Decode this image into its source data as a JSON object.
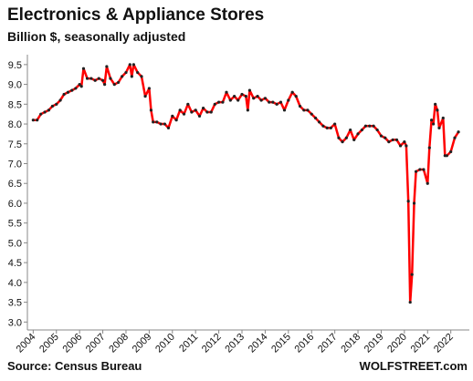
{
  "chart_data": {
    "type": "line",
    "title": "Electronics & Appliance Stores",
    "subtitle": "Billion $, seasonally adjusted",
    "source": "Source: Census Bureau",
    "credit": "WOLFSTREET.com",
    "xlim": [
      2003.75,
      2022.8
    ],
    "xticks": [
      2004,
      2005,
      2006,
      2007,
      2008,
      2009,
      2010,
      2011,
      2012,
      2013,
      2014,
      2015,
      2016,
      2017,
      2018,
      2019,
      2020,
      2021,
      2022
    ],
    "ylim": [
      2.8,
      9.75
    ],
    "yticks": [
      {
        "value": 3,
        "label": "3.0"
      },
      3.5,
      {
        "value": 4,
        "label": "4.0"
      },
      4.5,
      {
        "value": 5,
        "label": "5.0"
      },
      5.5,
      {
        "value": 6,
        "label": "6.0"
      },
      6.5,
      {
        "value": 7,
        "label": "7.0"
      },
      7.5,
      {
        "value": 8,
        "label": "8.0"
      },
      8.5,
      {
        "value": 9,
        "label": "9.0"
      },
      9.5
    ],
    "grid": false,
    "series": [
      {
        "color": "#ff0000",
        "marker_color": "#222222",
        "x": [
          2004.0,
          2004.17,
          2004.33,
          2004.5,
          2004.67,
          2004.83,
          2005.0,
          2005.17,
          2005.33,
          2005.5,
          2005.67,
          2005.83,
          2006.0,
          2006.08,
          2006.17,
          2006.33,
          2006.5,
          2006.67,
          2006.83,
          2007.0,
          2007.08,
          2007.17,
          2007.33,
          2007.5,
          2007.67,
          2007.83,
          2008.0,
          2008.17,
          2008.25,
          2008.33,
          2008.5,
          2008.67,
          2008.83,
          2009.0,
          2009.08,
          2009.17,
          2009.33,
          2009.5,
          2009.67,
          2009.83,
          2010.0,
          2010.17,
          2010.33,
          2010.5,
          2010.67,
          2010.83,
          2011.0,
          2011.17,
          2011.33,
          2011.5,
          2011.67,
          2011.83,
          2012.0,
          2012.17,
          2012.33,
          2012.5,
          2012.67,
          2012.83,
          2013.0,
          2013.17,
          2013.25,
          2013.33,
          2013.5,
          2013.67,
          2013.83,
          2014.0,
          2014.17,
          2014.33,
          2014.5,
          2014.67,
          2014.83,
          2015.0,
          2015.17,
          2015.33,
          2015.5,
          2015.67,
          2015.83,
          2016.0,
          2016.17,
          2016.33,
          2016.5,
          2016.67,
          2016.83,
          2017.0,
          2017.17,
          2017.33,
          2017.5,
          2017.67,
          2017.83,
          2018.0,
          2018.17,
          2018.33,
          2018.5,
          2018.67,
          2018.83,
          2019.0,
          2019.17,
          2019.33,
          2019.5,
          2019.67,
          2019.83,
          2020.0,
          2020.08,
          2020.17,
          2020.25,
          2020.33,
          2020.42,
          2020.5,
          2020.67,
          2020.83,
          2021.0,
          2021.08,
          2021.17,
          2021.25,
          2021.33,
          2021.42,
          2021.5,
          2021.67,
          2021.75,
          2021.83,
          2022.0,
          2022.17,
          2022.33
        ],
        "values": [
          8.1,
          8.1,
          8.25,
          8.3,
          8.35,
          8.45,
          8.5,
          8.6,
          8.75,
          8.8,
          8.85,
          8.9,
          9.0,
          8.95,
          9.4,
          9.15,
          9.15,
          9.1,
          9.15,
          9.1,
          9.0,
          9.45,
          9.15,
          9.0,
          9.05,
          9.2,
          9.3,
          9.5,
          9.2,
          9.5,
          9.3,
          9.2,
          8.7,
          8.9,
          8.35,
          8.05,
          8.05,
          8.0,
          8.0,
          7.9,
          8.2,
          8.1,
          8.35,
          8.25,
          8.5,
          8.3,
          8.35,
          8.2,
          8.4,
          8.3,
          8.3,
          8.5,
          8.55,
          8.55,
          8.8,
          8.6,
          8.7,
          8.6,
          8.75,
          8.7,
          8.35,
          8.85,
          8.65,
          8.7,
          8.6,
          8.65,
          8.55,
          8.55,
          8.5,
          8.55,
          8.35,
          8.6,
          8.8,
          8.7,
          8.45,
          8.35,
          8.35,
          8.25,
          8.15,
          8.05,
          7.95,
          7.9,
          7.9,
          8.0,
          7.65,
          7.55,
          7.65,
          7.85,
          7.6,
          7.75,
          7.85,
          7.95,
          7.95,
          7.95,
          7.85,
          7.7,
          7.65,
          7.55,
          7.6,
          7.6,
          7.45,
          7.55,
          7.45,
          6.05,
          3.5,
          4.2,
          6.0,
          6.8,
          6.85,
          6.85,
          6.5,
          7.4,
          8.1,
          8.0,
          8.5,
          8.35,
          7.9,
          8.15,
          7.2,
          7.2,
          7.3,
          7.65,
          7.8
        ]
      }
    ]
  }
}
